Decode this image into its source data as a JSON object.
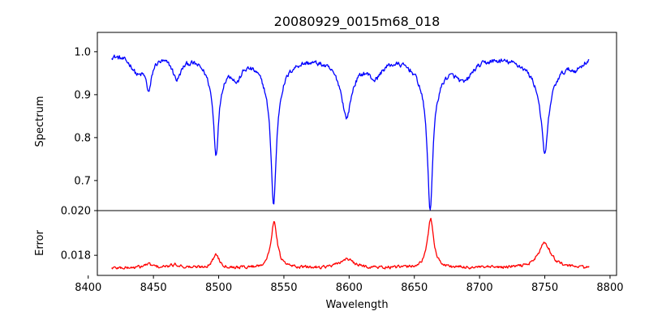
{
  "chart_data": {
    "title": "20080929_0015m68_018",
    "type": "line",
    "xlabel": "Wavelength",
    "x_range": [
      8418,
      8784
    ],
    "xlim": [
      8407,
      8805
    ],
    "x_ticks": [
      8400,
      8450,
      8500,
      8550,
      8600,
      8650,
      8700,
      8750,
      8800
    ],
    "x_tick_labels": [
      "8400",
      "8450",
      "8500",
      "8550",
      "8600",
      "8650",
      "8700",
      "8750",
      "8800"
    ],
    "panels": [
      {
        "name": "spectrum",
        "ylabel": "Spectrum",
        "ylim": [
          0.63,
          1.045
        ],
        "y_ticks": [
          0.7,
          0.8,
          0.9,
          1.0
        ],
        "y_tick_labels": [
          "0.7",
          "0.8",
          "0.9",
          "1.0"
        ],
        "color": "#0000ff",
        "continuum": 0.995,
        "features": [
          {
            "center": 8438,
            "depth": 0.04,
            "width": 6
          },
          {
            "center": 8446.5,
            "depth": 0.07,
            "width": 2.5
          },
          {
            "center": 8468,
            "depth": 0.05,
            "width": 4
          },
          {
            "center": 8498.0,
            "depth": 0.165,
            "width": 2.2
          },
          {
            "center": 8498.0,
            "depth": 0.06,
            "width": 8
          },
          {
            "center": 8514,
            "depth": 0.04,
            "width": 4
          },
          {
            "center": 8542.1,
            "depth": 0.265,
            "width": 2.3
          },
          {
            "center": 8542.1,
            "depth": 0.08,
            "width": 9
          },
          {
            "center": 8598,
            "depth": 0.1,
            "width": 4
          },
          {
            "center": 8598,
            "depth": 0.04,
            "width": 12
          },
          {
            "center": 8620,
            "depth": 0.04,
            "width": 6
          },
          {
            "center": 8662.1,
            "depth": 0.27,
            "width": 2.2
          },
          {
            "center": 8662.1,
            "depth": 0.09,
            "width": 9
          },
          {
            "center": 8688,
            "depth": 0.05,
            "width": 8
          },
          {
            "center": 8750,
            "depth": 0.16,
            "width": 3
          },
          {
            "center": 8750,
            "depth": 0.07,
            "width": 12
          },
          {
            "center": 8774,
            "depth": 0.02,
            "width": 6
          }
        ],
        "noise": 0.009
      },
      {
        "name": "error",
        "ylabel": "Error",
        "ylim": [
          0.0171,
          0.02
        ],
        "y_ticks": [
          0.018,
          0.02
        ],
        "y_tick_labels": [
          "0.018",
          "0.020"
        ],
        "color": "#ff0000",
        "continuum": 0.01743,
        "features": [
          {
            "center": 8446,
            "depth": -0.00016,
            "width": 4
          },
          {
            "center": 8467,
            "depth": -0.00014,
            "width": 5
          },
          {
            "center": 8498,
            "depth": -0.0006,
            "width": 3
          },
          {
            "center": 8542.5,
            "depth": -0.0021,
            "width": 2.8
          },
          {
            "center": 8598,
            "depth": -0.0004,
            "width": 6
          },
          {
            "center": 8662.5,
            "depth": -0.0022,
            "width": 2.8
          },
          {
            "center": 8750,
            "depth": -0.0011,
            "width": 6
          }
        ],
        "noise": 0.00011
      }
    ]
  }
}
